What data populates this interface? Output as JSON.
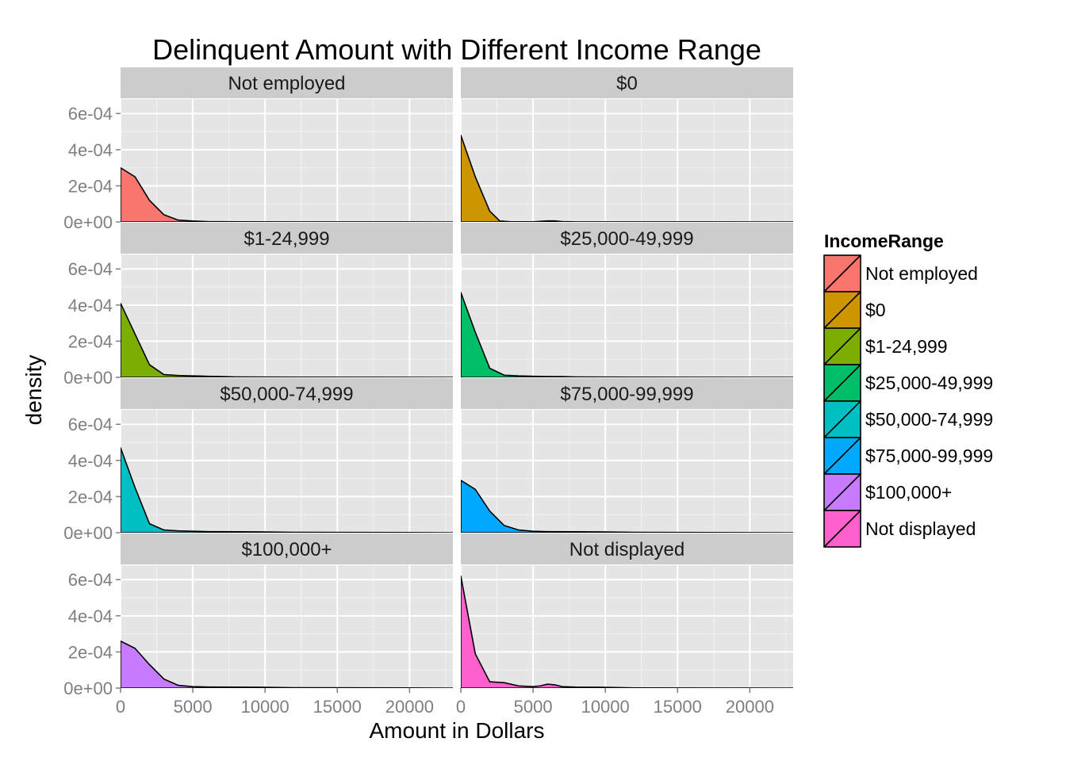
{
  "chart_data": {
    "type": "area",
    "title": "Delinquent Amount with Different Income Range",
    "xlabel": "Amount in Dollars",
    "ylabel": "density",
    "xlim": [
      0,
      23000
    ],
    "ylim": [
      0,
      0.00068
    ],
    "x_ticks": [
      0,
      5000,
      10000,
      15000,
      20000
    ],
    "x_tick_labels": [
      "0",
      "5000",
      "10000",
      "15000",
      "20000"
    ],
    "y_ticks": [
      0,
      0.0002,
      0.0004,
      0.0006
    ],
    "y_tick_labels": [
      "0e+00",
      "2e-04",
      "4e-04",
      "6e-04"
    ],
    "grid": true,
    "legend": {
      "title": "IncomeRange",
      "placement": "right"
    },
    "facets": [
      {
        "label": "Not employed",
        "color": "#F8766D",
        "x": [
          0,
          1000,
          2000,
          3000,
          4000,
          5000,
          6000,
          8000,
          12000,
          23000
        ],
        "y": [
          0.0003,
          0.00025,
          0.00012,
          4e-05,
          1e-05,
          5e-06,
          2e-06,
          1e-06,
          5e-07,
          0
        ]
      },
      {
        "label": "$0",
        "color": "#CD9600",
        "x": [
          0,
          1000,
          2000,
          2700,
          3500,
          5000,
          6000,
          6500,
          7000,
          8000,
          23000
        ],
        "y": [
          0.00048,
          0.00025,
          6e-05,
          5e-06,
          1e-06,
          1e-06,
          6e-06,
          6e-06,
          2e-06,
          5e-07,
          0
        ]
      },
      {
        "label": "$1-24,999",
        "color": "#7CAE00",
        "x": [
          0,
          1000,
          2000,
          3000,
          4000,
          5000,
          6000,
          7000,
          8000,
          12000,
          23000
        ],
        "y": [
          0.00041,
          0.00024,
          7e-05,
          1.5e-05,
          1e-05,
          8e-06,
          6e-06,
          4e-06,
          2e-06,
          1e-06,
          0
        ]
      },
      {
        "label": "$25,000-49,999",
        "color": "#00BE67",
        "x": [
          0,
          1000,
          2000,
          3000,
          4000,
          5000,
          6000,
          7000,
          8000,
          12000,
          23000
        ],
        "y": [
          0.00047,
          0.00025,
          5e-05,
          1.2e-05,
          8e-06,
          6e-06,
          4e-06,
          4e-06,
          2e-06,
          1e-06,
          0
        ]
      },
      {
        "label": "$50,000-74,999",
        "color": "#00BFC4",
        "x": [
          0,
          1000,
          2000,
          3000,
          4000,
          5000,
          6000,
          8000,
          10000,
          12000,
          23000
        ],
        "y": [
          0.00047,
          0.00025,
          5e-05,
          1.5e-05,
          1e-05,
          8e-06,
          6e-06,
          5e-06,
          4e-06,
          2e-06,
          0
        ]
      },
      {
        "label": "$75,000-99,999",
        "color": "#00A9FF",
        "x": [
          0,
          1000,
          2000,
          3000,
          4000,
          5000,
          6000,
          8000,
          10000,
          12000,
          23000
        ],
        "y": [
          0.00029,
          0.00024,
          0.00012,
          4e-05,
          1.5e-05,
          8e-06,
          6e-06,
          5e-06,
          4e-06,
          2e-06,
          0
        ]
      },
      {
        "label": "$100,000+",
        "color": "#C77CFF",
        "x": [
          0,
          1000,
          2000,
          3000,
          4000,
          5000,
          6000,
          8000,
          10000,
          12000,
          23000
        ],
        "y": [
          0.00026,
          0.00022,
          0.00013,
          5e-05,
          1.5e-05,
          8e-06,
          6e-06,
          5e-06,
          4e-06,
          2e-06,
          0
        ]
      },
      {
        "label": "Not displayed",
        "color": "#FF61CC",
        "x": [
          0,
          1000,
          2000,
          3000,
          4000,
          5000,
          5500,
          6000,
          6500,
          7000,
          8000,
          10000,
          12000,
          23000
        ],
        "y": [
          0.00062,
          0.00019,
          3.5e-05,
          3e-05,
          1.2e-05,
          8e-06,
          1.2e-05,
          2.2e-05,
          1.8e-05,
          8e-06,
          5e-06,
          4e-06,
          1e-06,
          0
        ]
      }
    ]
  }
}
